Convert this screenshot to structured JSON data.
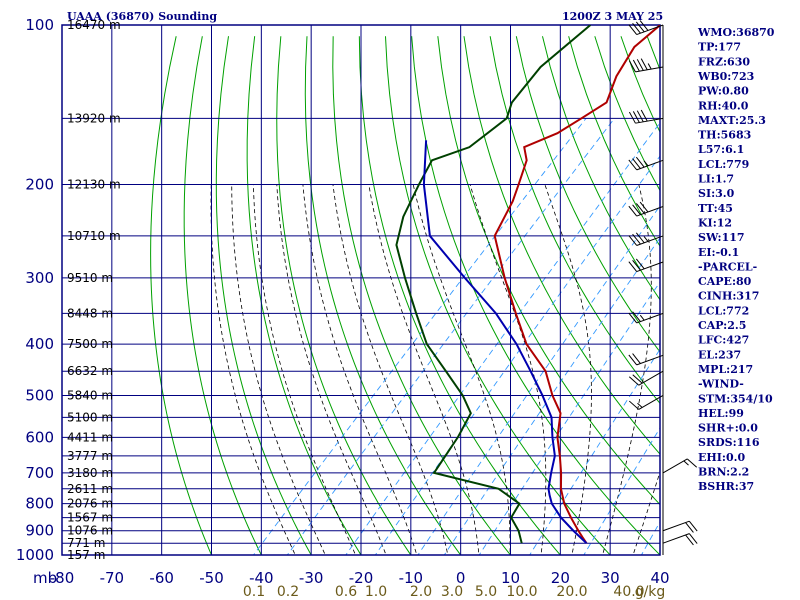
{
  "header": {
    "title": "UAAA (36870) Sounding",
    "datetime": "1200Z  3 MAY 25"
  },
  "colors": {
    "frame": "#000080",
    "dry_adiabat": "#00a000",
    "moist_adiabat": "#000000",
    "mixing_ratio": "#3399ff",
    "temperature": "#b00000",
    "dewpoint": "#004000",
    "parcel": "#0000b0",
    "wind_barb": "#000000",
    "mixing_label": "#6b5a1a"
  },
  "indices": [
    "WMO:36870",
    "TP:177",
    "FRZ:630",
    "WB0:723",
    "PW:0.80",
    "RH:40.0",
    "MAXT:25.3",
    "TH:5683",
    "L57:6.1",
    "LCL:779",
    "LI:1.7",
    "SI:3.0",
    "TT:45",
    "KI:12",
    "SW:117",
    "EI:-0.1",
    "-PARCEL-",
    "CAPE:80",
    "CINH:317",
    "LCL:772",
    "CAP:2.5",
    "LFC:427",
    "EL:237",
    "MPL:217",
    "-WIND-",
    "STM:354/10",
    "HEL:99",
    "SHR+:0.0",
    "SRDS:116",
    "EHI:0.0",
    "BRN:2.2",
    "BSHR:37"
  ],
  "chart_data": {
    "type": "line",
    "subtype": "skew-t",
    "x_unit_label": "mb",
    "pressure_axis": {
      "ticks": [
        100,
        200,
        300,
        400,
        500,
        600,
        700,
        800,
        900,
        1000
      ],
      "scale": "log",
      "range": [
        100,
        1000
      ]
    },
    "temperature_axis": {
      "ticks": [
        -80,
        -70,
        -60,
        -50,
        -40,
        -30,
        -20,
        -10,
        0,
        10,
        20,
        30,
        40
      ],
      "range": [
        -80,
        40
      ]
    },
    "height_labels": [
      {
        "p": 100,
        "label": "16470 m"
      },
      {
        "p": 150,
        "label": "13920 m"
      },
      {
        "p": 200,
        "label": "12130 m"
      },
      {
        "p": 250,
        "label": "10710 m"
      },
      {
        "p": 300,
        "label": "9510 m"
      },
      {
        "p": 350,
        "label": "8448 m"
      },
      {
        "p": 400,
        "label": "7500 m"
      },
      {
        "p": 450,
        "label": "6632 m"
      },
      {
        "p": 500,
        "label": "5840 m"
      },
      {
        "p": 550,
        "label": "5100 m"
      },
      {
        "p": 600,
        "label": "4411 m"
      },
      {
        "p": 650,
        "label": "3777 m"
      },
      {
        "p": 700,
        "label": "3180 m"
      },
      {
        "p": 750,
        "label": "2611 m"
      },
      {
        "p": 800,
        "label": "2076 m"
      },
      {
        "p": 850,
        "label": "1567 m"
      },
      {
        "p": 900,
        "label": "1076 m"
      },
      {
        "p": 950,
        "label": "771 m"
      },
      {
        "p": 1000,
        "label": "157 m"
      }
    ],
    "mixing_ratio_labels": [
      "0.1",
      "0.2",
      "0.6",
      "1.0",
      "2.0",
      "3.0",
      "5.0",
      "10.0",
      "20.0",
      "40.0",
      "g/kg"
    ],
    "mixing_ratio_values": [
      0.1,
      0.2,
      0.6,
      1.0,
      2.0,
      3.0,
      5.0,
      10.0,
      20.0,
      40.0
    ],
    "series": [
      {
        "key": "temperature",
        "points": [
          [
            100,
            -61
          ],
          [
            110,
            -62
          ],
          [
            125,
            -60
          ],
          [
            140,
            -57
          ],
          [
            150,
            -59
          ],
          [
            160,
            -61
          ],
          [
            170,
            -65
          ],
          [
            180,
            -62
          ],
          [
            200,
            -59
          ],
          [
            215,
            -57
          ],
          [
            250,
            -54
          ],
          [
            300,
            -44
          ],
          [
            350,
            -35
          ],
          [
            400,
            -27
          ],
          [
            450,
            -18
          ],
          [
            500,
            -12
          ],
          [
            540,
            -7
          ],
          [
            600,
            -3
          ],
          [
            650,
            1
          ],
          [
            700,
            4.5
          ],
          [
            750,
            7.5
          ],
          [
            800,
            11
          ],
          [
            850,
            15
          ],
          [
            900,
            19
          ],
          [
            925,
            21
          ],
          [
            950,
            23
          ]
        ]
      },
      {
        "key": "dewpoint",
        "points": [
          [
            100,
            -75
          ],
          [
            120,
            -77
          ],
          [
            140,
            -76
          ],
          [
            150,
            -74
          ],
          [
            170,
            -76
          ],
          [
            180,
            -81
          ],
          [
            200,
            -79
          ],
          [
            230,
            -76
          ],
          [
            260,
            -72
          ],
          [
            300,
            -64
          ],
          [
            350,
            -55
          ],
          [
            400,
            -47
          ],
          [
            450,
            -38
          ],
          [
            500,
            -30
          ],
          [
            540,
            -25
          ],
          [
            600,
            -23
          ],
          [
            700,
            -21
          ],
          [
            750,
            -5
          ],
          [
            800,
            2
          ],
          [
            850,
            3
          ],
          [
            900,
            7
          ],
          [
            950,
            10
          ]
        ]
      },
      {
        "key": "parcel",
        "points": [
          [
            165,
            -86
          ],
          [
            200,
            -78
          ],
          [
            250,
            -67
          ],
          [
            300,
            -52
          ],
          [
            350,
            -39
          ],
          [
            400,
            -29
          ],
          [
            450,
            -21
          ],
          [
            500,
            -14
          ],
          [
            550,
            -8
          ],
          [
            600,
            -4
          ],
          [
            650,
            0
          ],
          [
            700,
            2.5
          ],
          [
            750,
            5
          ],
          [
            772,
            6.5
          ],
          [
            800,
            8.5
          ],
          [
            850,
            13
          ],
          [
            900,
            18
          ],
          [
            950,
            23
          ]
        ]
      }
    ],
    "wind": [
      {
        "p": 100,
        "dir": 250,
        "spd": 40
      },
      {
        "p": 120,
        "dir": 260,
        "spd": 45
      },
      {
        "p": 150,
        "dir": 260,
        "spd": 40
      },
      {
        "p": 180,
        "dir": 250,
        "spd": 35
      },
      {
        "p": 220,
        "dir": 250,
        "spd": 40
      },
      {
        "p": 250,
        "dir": 250,
        "spd": 35
      },
      {
        "p": 280,
        "dir": 250,
        "spd": 30
      },
      {
        "p": 350,
        "dir": 250,
        "spd": 25
      },
      {
        "p": 420,
        "dir": 250,
        "spd": 20
      },
      {
        "p": 450,
        "dir": 240,
        "spd": 20
      },
      {
        "p": 500,
        "dir": 240,
        "spd": 15
      },
      {
        "p": 700,
        "dir": 60,
        "spd": 15
      },
      {
        "p": 900,
        "dir": 70,
        "spd": 20
      },
      {
        "p": 950,
        "dir": 70,
        "spd": 20
      }
    ]
  }
}
